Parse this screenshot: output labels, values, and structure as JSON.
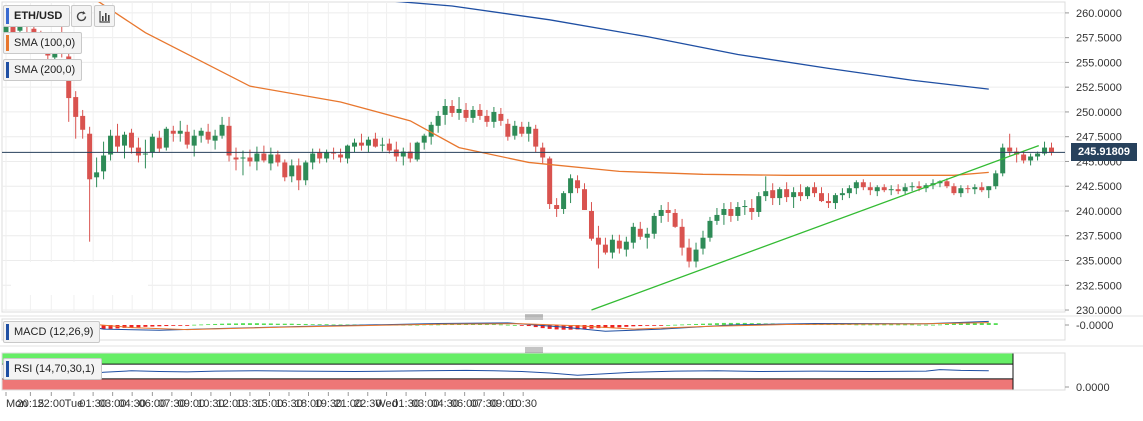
{
  "toolbar": {
    "symbol": "ETH/USD",
    "refresh_icon": "refresh-icon",
    "bars_icon": "bar-chart-icon"
  },
  "legends": {
    "sma100": "SMA (100,0)",
    "sma200": "SMA (200,0)",
    "macd": "MACD (12,26,9)",
    "rsi": "RSI (14,70,30,1)"
  },
  "colors": {
    "up": "#2e8b57",
    "down": "#d9534f",
    "sma100": "#e8772e",
    "sma200": "#1f4fa3",
    "trendline": "#33bb33",
    "price_line": "#27415c",
    "macd_line": "#1f4fa3",
    "signal_line": "#e8772e",
    "hist_neg": "#ee2222",
    "hist_pos": "#55dd55",
    "rsi_line": "#1f4fa3",
    "rsi_overbought": "#66ee66",
    "rsi_oversold": "#ee7777"
  },
  "chart_data": {
    "type": "candlestick",
    "symbol": "ETH/USD",
    "current_price": "245.91809",
    "y_axis": {
      "labels": [
        "260.0000",
        "257.5000",
        "255.0000",
        "252.5000",
        "250.0000",
        "247.5000",
        "245.0000",
        "242.5000",
        "240.0000",
        "237.5000",
        "235.0000",
        "232.5000",
        "230.0000"
      ],
      "min": 229.8,
      "max": 261.1
    },
    "x_axis": {
      "labels": [
        "Mon",
        "20:15",
        "22:00",
        "Tue",
        "01:30",
        "03:00",
        "04:30",
        "06:00",
        "07:30",
        "09:00",
        "10:30",
        "12:00",
        "13:30",
        "15:00",
        "16:30",
        "18:00",
        "19:30",
        "21:00",
        "22:30",
        "Wed",
        "01:30",
        "03:00",
        "04:30",
        "06:00",
        "07:30",
        "09:00",
        "10:30"
      ],
      "label_index": [
        0,
        3.5,
        6.5,
        9.75,
        12.5,
        15.3,
        18.1,
        21,
        23.8,
        26.6,
        29.4,
        32.2,
        35,
        37.8,
        40.6,
        43.4,
        46.25,
        49.1,
        51.9,
        54.6,
        57.4,
        60.2,
        63,
        65.8,
        68.6,
        71.4,
        74.2
      ]
    },
    "ohlc": [
      [
        257.4,
        260.4,
        256.6,
        259.4
      ],
      [
        258.9,
        259.2,
        257.0,
        258.0
      ],
      [
        258.2,
        259.6,
        257.8,
        259.3
      ],
      [
        259.3,
        260.7,
        257.9,
        258.6
      ],
      [
        258.4,
        259.2,
        256.7,
        257.1
      ],
      [
        257.6,
        258.2,
        256.2,
        256.6
      ],
      [
        256.6,
        257.3,
        255.0,
        255.7
      ],
      [
        255.5,
        257.9,
        255.0,
        256.6
      ],
      [
        257.6,
        258.6,
        255.5,
        256.6
      ],
      [
        255.6,
        256.3,
        249.0,
        251.4
      ],
      [
        251.5,
        252.1,
        247.3,
        249.5
      ],
      [
        249.6,
        250.2,
        247.3,
        248.2
      ],
      [
        247.8,
        248.5,
        236.9,
        243.2
      ],
      [
        243.4,
        245.4,
        242.4,
        243.9
      ],
      [
        244.0,
        247.0,
        243.2,
        245.6
      ],
      [
        245.7,
        248.2,
        245.1,
        247.6
      ],
      [
        247.6,
        248.8,
        245.9,
        246.5
      ],
      [
        246.6,
        248.0,
        245.3,
        247.7
      ],
      [
        247.9,
        248.3,
        245.8,
        246.4
      ],
      [
        246.4,
        247.4,
        244.9,
        245.6
      ],
      [
        245.7,
        247.2,
        244.3,
        245.8
      ],
      [
        245.9,
        247.8,
        245.4,
        247.5
      ],
      [
        247.4,
        248.1,
        245.9,
        246.3
      ],
      [
        246.4,
        248.5,
        246.1,
        248.3
      ],
      [
        248.1,
        248.6,
        247.0,
        247.8
      ],
      [
        247.8,
        249.1,
        247.0,
        248.1
      ],
      [
        248.0,
        248.7,
        246.3,
        246.7
      ],
      [
        246.6,
        248.2,
        245.5,
        247.6
      ],
      [
        247.6,
        248.4,
        246.9,
        248.1
      ],
      [
        248.0,
        248.8,
        246.8,
        247.2
      ],
      [
        247.1,
        248.2,
        246.2,
        247.6
      ],
      [
        247.6,
        249.5,
        247.3,
        248.7
      ],
      [
        248.6,
        249.5,
        245.0,
        245.6
      ],
      [
        245.4,
        246.4,
        244.1,
        245.2
      ],
      [
        245.3,
        246.1,
        243.6,
        245.4
      ],
      [
        245.4,
        246.2,
        244.5,
        245.0
      ],
      [
        245.0,
        246.5,
        244.1,
        245.8
      ],
      [
        245.8,
        246.6,
        244.9,
        245.1
      ],
      [
        244.8,
        246.4,
        244.1,
        245.7
      ],
      [
        245.7,
        246.1,
        244.5,
        244.9
      ],
      [
        244.9,
        245.2,
        243.0,
        243.4
      ],
      [
        243.5,
        245.2,
        242.9,
        244.6
      ],
      [
        244.6,
        245.3,
        242.1,
        243.1
      ],
      [
        243.1,
        245.1,
        242.6,
        244.9
      ],
      [
        244.9,
        246.3,
        244.2,
        245.8
      ],
      [
        245.9,
        246.3,
        244.8,
        245.3
      ],
      [
        245.3,
        246.2,
        244.9,
        245.9
      ],
      [
        245.9,
        246.4,
        245.2,
        245.8
      ],
      [
        245.7,
        246.3,
        244.9,
        245.4
      ],
      [
        245.3,
        246.7,
        244.8,
        246.6
      ],
      [
        246.5,
        247.3,
        245.9,
        246.9
      ],
      [
        246.9,
        247.8,
        246.1,
        246.6
      ],
      [
        246.6,
        247.5,
        245.9,
        247.2
      ],
      [
        247.3,
        247.9,
        246.4,
        246.5
      ],
      [
        246.6,
        247.4,
        246.0,
        246.7
      ],
      [
        246.8,
        247.3,
        245.8,
        246.1
      ],
      [
        246.2,
        247.0,
        245.0,
        245.5
      ],
      [
        245.5,
        246.4,
        244.6,
        246.0
      ],
      [
        246.0,
        246.9,
        244.9,
        245.3
      ],
      [
        245.2,
        247.0,
        245.0,
        246.9
      ],
      [
        246.9,
        247.8,
        246.2,
        247.6
      ],
      [
        247.5,
        249.0,
        246.7,
        248.7
      ],
      [
        248.6,
        250.1,
        247.9,
        249.6
      ],
      [
        249.7,
        251.3,
        248.7,
        250.6
      ],
      [
        250.6,
        251.2,
        249.5,
        249.9
      ],
      [
        249.9,
        251.5,
        249.2,
        250.3
      ],
      [
        250.2,
        250.9,
        249.0,
        249.4
      ],
      [
        249.4,
        250.6,
        248.9,
        250.2
      ],
      [
        250.2,
        250.8,
        249.2,
        249.6
      ],
      [
        249.6,
        250.2,
        248.5,
        249.0
      ],
      [
        249.0,
        250.5,
        248.4,
        250.0
      ],
      [
        249.8,
        250.4,
        248.6,
        249.1
      ],
      [
        248.8,
        249.3,
        247.1,
        247.5
      ],
      [
        247.6,
        249.1,
        247.2,
        248.6
      ],
      [
        248.5,
        249.0,
        247.5,
        247.8
      ],
      [
        247.8,
        249.0,
        247.0,
        248.5
      ],
      [
        248.3,
        248.7,
        245.9,
        246.5
      ],
      [
        246.4,
        246.9,
        244.7,
        245.4
      ],
      [
        245.3,
        245.5,
        240.2,
        240.7
      ],
      [
        240.6,
        241.3,
        239.4,
        240.2
      ],
      [
        240.2,
        242.0,
        239.7,
        241.8
      ],
      [
        241.8,
        243.7,
        240.8,
        243.3
      ],
      [
        243.1,
        243.6,
        241.8,
        242.3
      ],
      [
        242.2,
        242.8,
        240.1,
        240.1
      ],
      [
        240.0,
        240.9,
        237.0,
        237.2
      ],
      [
        237.3,
        238.5,
        234.2,
        236.6
      ],
      [
        236.6,
        237.3,
        235.6,
        235.8
      ],
      [
        235.8,
        237.6,
        235.2,
        237.1
      ],
      [
        237.0,
        237.6,
        235.7,
        236.2
      ],
      [
        236.1,
        237.4,
        235.4,
        236.9
      ],
      [
        236.8,
        238.8,
        236.2,
        238.4
      ],
      [
        238.2,
        238.9,
        237.1,
        237.4
      ],
      [
        237.3,
        238.3,
        236.2,
        237.7
      ],
      [
        237.7,
        239.8,
        237.2,
        239.5
      ],
      [
        239.5,
        240.6,
        238.8,
        240.1
      ],
      [
        240.1,
        240.9,
        238.9,
        239.8
      ],
      [
        239.8,
        240.2,
        238.3,
        238.4
      ],
      [
        238.4,
        239.2,
        235.5,
        236.3
      ],
      [
        236.3,
        237.2,
        234.3,
        234.9
      ],
      [
        234.9,
        236.8,
        234.3,
        236.1
      ],
      [
        236.2,
        238.0,
        235.6,
        237.3
      ],
      [
        237.3,
        239.4,
        236.9,
        239.0
      ],
      [
        239.0,
        240.3,
        238.6,
        239.6
      ],
      [
        239.6,
        240.8,
        238.6,
        240.2
      ],
      [
        240.2,
        240.9,
        238.9,
        239.5
      ],
      [
        239.5,
        240.9,
        239.0,
        240.4
      ],
      [
        240.4,
        241.1,
        239.6,
        240.5
      ],
      [
        240.3,
        241.2,
        239.1,
        239.9
      ],
      [
        239.9,
        241.9,
        239.4,
        241.5
      ],
      [
        241.5,
        243.5,
        241.0,
        242.0
      ],
      [
        242.1,
        242.8,
        240.6,
        241.3
      ],
      [
        241.3,
        242.4,
        240.6,
        242.2
      ],
      [
        242.2,
        242.9,
        240.9,
        241.4
      ],
      [
        241.4,
        242.4,
        240.3,
        241.9
      ],
      [
        241.9,
        242.7,
        241.0,
        241.5
      ],
      [
        241.5,
        242.5,
        241.2,
        242.4
      ],
      [
        242.4,
        242.9,
        241.4,
        241.8
      ],
      [
        241.8,
        242.4,
        240.9,
        241.0
      ],
      [
        241.0,
        241.8,
        240.3,
        240.8
      ],
      [
        240.8,
        241.8,
        240.2,
        241.6
      ],
      [
        241.6,
        242.3,
        241.1,
        241.8
      ],
      [
        241.8,
        242.6,
        241.3,
        242.3
      ],
      [
        242.3,
        243.1,
        241.7,
        242.9
      ],
      [
        242.9,
        243.2,
        242.1,
        242.4
      ],
      [
        242.4,
        242.9,
        241.6,
        242.1
      ],
      [
        242.0,
        242.6,
        241.5,
        242.4
      ],
      [
        242.4,
        242.7,
        241.9,
        242.1
      ],
      [
        242.1,
        242.6,
        241.6,
        242.2
      ],
      [
        242.2,
        242.7,
        241.7,
        242.0
      ],
      [
        242.0,
        242.8,
        241.7,
        242.4
      ],
      [
        242.4,
        242.9,
        242.0,
        242.5
      ],
      [
        242.5,
        243.0,
        242.0,
        242.3
      ],
      [
        242.3,
        242.8,
        241.9,
        242.6
      ],
      [
        242.6,
        243.2,
        242.2,
        242.8
      ],
      [
        242.8,
        243.1,
        242.4,
        243.0
      ],
      [
        243.0,
        243.3,
        242.3,
        242.5
      ],
      [
        242.5,
        242.8,
        241.6,
        241.8
      ],
      [
        241.8,
        242.6,
        241.4,
        242.3
      ],
      [
        242.3,
        242.6,
        241.8,
        242.2
      ],
      [
        242.2,
        242.7,
        241.7,
        242.4
      ],
      [
        242.4,
        242.9,
        241.9,
        242.1
      ],
      [
        242.1,
        242.5,
        241.3,
        242.5
      ],
      [
        242.5,
        244.1,
        242.2,
        243.8
      ],
      [
        243.8,
        246.8,
        243.5,
        246.4
      ],
      [
        246.4,
        247.8,
        245.6,
        246.0
      ],
      [
        246.0,
        246.4,
        244.9,
        245.7
      ],
      [
        245.7,
        246.1,
        244.8,
        245.1
      ],
      [
        245.1,
        245.8,
        244.6,
        245.5
      ],
      [
        245.5,
        246.0,
        245.1,
        245.8
      ],
      [
        245.8,
        247.0,
        245.6,
        246.4
      ],
      [
        246.4,
        246.9,
        245.6,
        245.9
      ]
    ],
    "sma_100": {
      "name": "SMA (100,0)",
      "points": [
        [
          8,
          263.6
        ],
        [
          20,
          258.0
        ],
        [
          35,
          252.6
        ],
        [
          48,
          251.0
        ],
        [
          58,
          249.1
        ],
        [
          65,
          246.4
        ],
        [
          75,
          244.9
        ],
        [
          88,
          244.0
        ],
        [
          100,
          243.7
        ],
        [
          112,
          243.6
        ],
        [
          124,
          243.6
        ],
        [
          136,
          243.6
        ],
        [
          141,
          243.9
        ]
      ]
    },
    "sma_200": {
      "name": "SMA (200,0)",
      "points": [
        [
          30,
          262.5
        ],
        [
          50,
          261.5
        ],
        [
          64,
          260.7
        ],
        [
          78,
          259.3
        ],
        [
          92,
          257.6
        ],
        [
          105,
          255.8
        ],
        [
          118,
          254.4
        ],
        [
          130,
          253.2
        ],
        [
          141,
          252.3
        ]
      ]
    },
    "trendline": {
      "points": [
        [
          84,
          230.0
        ],
        [
          141,
          246.0
        ]
      ]
    },
    "macd": {
      "name": "MACD (12,26,9)",
      "y_label": "-0.0000",
      "histogram": [
        -0.4,
        -0.3,
        -0.2,
        -0.2,
        -0.2,
        -0.1,
        -0.1,
        -0.3,
        -0.5,
        -0.9,
        -1.2,
        -1.5,
        -1.6,
        -1.7,
        -1.6,
        -1.5,
        -1.3,
        -1.1,
        -1.0,
        -0.9,
        -0.7,
        -0.6,
        -0.5,
        -0.4,
        -0.3,
        -0.2,
        -0.1,
        0.1,
        0.2,
        0.3,
        0.4,
        0.5,
        0.6,
        0.6,
        0.7,
        0.7,
        0.7,
        0.6,
        0.6,
        0.5,
        0.5,
        0.5,
        0.4,
        0.4,
        0.3,
        0.3,
        0.3,
        0.2,
        0.2,
        0.2,
        0.2,
        0.2,
        0.2,
        0.2,
        0.2,
        0.1,
        0.1,
        0.1,
        0.1,
        0.1,
        0.2,
        0.2,
        0.2,
        0.3,
        0.3,
        0.4,
        0.4,
        0.4,
        0.4,
        0.3,
        0.3,
        0.2,
        0.1,
        0.0,
        -0.1,
        -0.4,
        -0.8,
        -1.2,
        -1.5,
        -1.7,
        -1.8,
        -1.8,
        -1.7,
        -1.6,
        -1.4,
        -1.2,
        -1.1,
        -1.0,
        -0.9,
        -0.7,
        -0.5,
        -0.4,
        -0.3,
        -0.2,
        -0.1,
        0.0,
        0.1,
        0.2,
        0.3,
        0.4,
        0.5,
        0.6,
        0.7,
        0.8,
        0.8,
        0.8,
        0.8,
        0.7,
        0.7,
        0.6,
        0.6,
        0.5,
        0.4,
        0.4,
        0.4,
        0.4,
        0.3,
        0.3,
        0.3,
        0.3,
        0.3,
        0.3,
        0.2,
        0.2,
        0.2,
        0.2,
        0.2,
        0.2,
        0.2,
        0.2,
        0.2,
        0.1,
        0.1,
        0.1,
        0.2,
        0.4,
        0.6,
        0.8,
        0.8,
        0.8,
        0.8,
        0.8,
        0.7
      ],
      "macd_line": [
        [
          0,
          0.5
        ],
        [
          10,
          0.2
        ],
        [
          14,
          -1.6
        ],
        [
          22,
          -2.0
        ],
        [
          30,
          -1.4
        ],
        [
          45,
          -0.4
        ],
        [
          62,
          0.6
        ],
        [
          72,
          0.8
        ],
        [
          80,
          -0.8
        ],
        [
          86,
          -2.4
        ],
        [
          94,
          -1.6
        ],
        [
          104,
          0.0
        ],
        [
          116,
          0.6
        ],
        [
          132,
          0.5
        ],
        [
          141,
          1.4
        ]
      ],
      "signal_line": [
        [
          0,
          0.6
        ],
        [
          12,
          0.4
        ],
        [
          18,
          -1.0
        ],
        [
          26,
          -1.8
        ],
        [
          40,
          -0.8
        ],
        [
          62,
          0.3
        ],
        [
          74,
          0.5
        ],
        [
          82,
          -0.3
        ],
        [
          90,
          -1.6
        ],
        [
          100,
          -0.6
        ],
        [
          112,
          0.2
        ],
        [
          130,
          0.4
        ],
        [
          141,
          0.9
        ]
      ]
    },
    "rsi": {
      "name": "RSI (14,70,30,1)",
      "y_label": "0.0000",
      "overbought": 70,
      "oversold": 30,
      "values": [
        [
          0,
          52
        ],
        [
          4,
          49
        ],
        [
          8,
          51
        ],
        [
          10,
          46
        ],
        [
          12,
          43
        ],
        [
          14,
          48
        ],
        [
          18,
          52
        ],
        [
          22,
          50
        ],
        [
          26,
          49
        ],
        [
          30,
          51
        ],
        [
          36,
          52
        ],
        [
          42,
          51
        ],
        [
          50,
          50
        ],
        [
          60,
          52
        ],
        [
          66,
          53
        ],
        [
          70,
          52
        ],
        [
          74,
          50
        ],
        [
          78,
          46
        ],
        [
          82,
          40
        ],
        [
          86,
          44
        ],
        [
          90,
          48
        ],
        [
          96,
          51
        ],
        [
          102,
          52
        ],
        [
          108,
          50
        ],
        [
          116,
          51
        ],
        [
          124,
          50
        ],
        [
          132,
          51
        ],
        [
          134,
          55
        ],
        [
          137,
          53
        ],
        [
          141,
          52
        ]
      ]
    }
  }
}
